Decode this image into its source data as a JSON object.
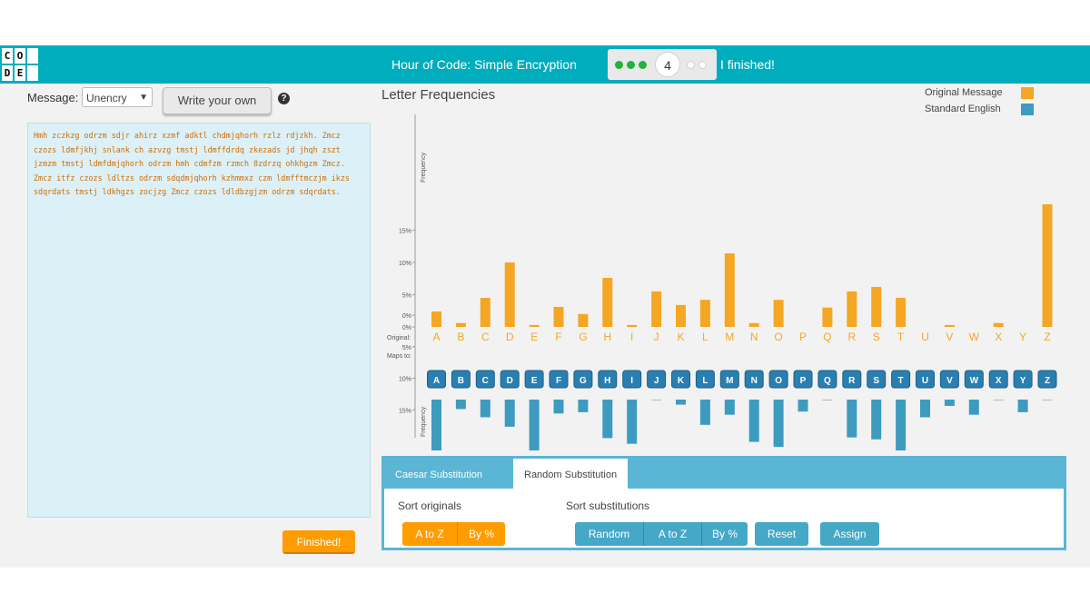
{
  "header": {
    "logo_letters": [
      "C",
      "O",
      "D",
      "E",
      "",
      ""
    ],
    "title": "Hour of Code: Simple Encryption",
    "level": "4",
    "finished_link": "I finished!",
    "colors": {
      "bar": "#00adbc",
      "done_dot": "#23b33a"
    }
  },
  "message": {
    "label": "Message:",
    "select_value": "Unencry",
    "write_own": "Write your own",
    "help_icon": "question-circle-icon",
    "text": "Hmh zczkzg odrzm sdjr ahirz xzmf adktl chdmjqhorh rzlz rdjzkh. Zmcz czozs ldmfjkhj snlank ch azvzg tmstj ldmffdrdq zkezads jd jhqh zszt jzmzm tmstj ldmfdmjqhorh odrzm hmh cdmfzm rzmch 8zdrzq ohkhgzm Zmcz. Zmcz itfz czozs ldltzs odrzm sdqdmjqhorh kzhmmxz czm ldmfftmczjm ikzs sdqrdats tmstj ldkhgzs zocjzg Zmcz czozs ldldbzgjzm odrzm sdqrdats.",
    "finished_button": "Finished!"
  },
  "frequencies": {
    "title": "Letter Frequencies",
    "legend_original": "Original Message",
    "legend_english": "Standard English",
    "original_row_label": "Original:",
    "maps_to_label": "Maps to:",
    "axis_label": "Frequency"
  },
  "chart_data": {
    "type": "bar",
    "categories": [
      "A",
      "B",
      "C",
      "D",
      "E",
      "F",
      "G",
      "H",
      "I",
      "J",
      "K",
      "L",
      "M",
      "N",
      "O",
      "P",
      "Q",
      "R",
      "S",
      "T",
      "U",
      "V",
      "W",
      "X",
      "Y",
      "Z"
    ],
    "mapped_letters": [
      "A",
      "B",
      "C",
      "D",
      "E",
      "F",
      "G",
      "H",
      "I",
      "J",
      "K",
      "L",
      "M",
      "N",
      "O",
      "P",
      "Q",
      "R",
      "S",
      "T",
      "U",
      "V",
      "W",
      "X",
      "Y",
      "Z"
    ],
    "yticks": [
      "0%",
      "5%",
      "10%",
      "15%"
    ],
    "ylim": [
      0,
      19
    ],
    "series": [
      {
        "name": "Original Message",
        "color": "#f5a623",
        "values": [
          2.4,
          0.6,
          4.5,
          10.0,
          0.3,
          3.1,
          2.0,
          7.6,
          0.3,
          5.5,
          3.4,
          4.2,
          11.4,
          0.6,
          4.2,
          0,
          3.0,
          5.5,
          6.2,
          4.5,
          0,
          0.3,
          0,
          0.6,
          0,
          19.0
        ]
      },
      {
        "name": "Standard English",
        "color": "#3d9bc0",
        "values": [
          8.2,
          1.5,
          2.8,
          4.3,
          12.7,
          2.2,
          2.0,
          6.1,
          7.0,
          0.15,
          0.8,
          4.0,
          2.4,
          6.7,
          7.5,
          1.9,
          0.1,
          6.0,
          6.3,
          9.1,
          2.8,
          1.0,
          2.4,
          0.15,
          2.0,
          0.07
        ]
      }
    ]
  },
  "substitution": {
    "tabs": [
      "Caesar Substitution",
      "Random Substitution"
    ],
    "sort_originals_label": "Sort originals",
    "sort_subs_label": "Sort substitutions",
    "orig_buttons": [
      "A to Z",
      "By %"
    ],
    "subs_buttons": [
      "Random",
      "A to Z",
      "By %"
    ],
    "reset": "Reset",
    "assign": "Assign"
  }
}
